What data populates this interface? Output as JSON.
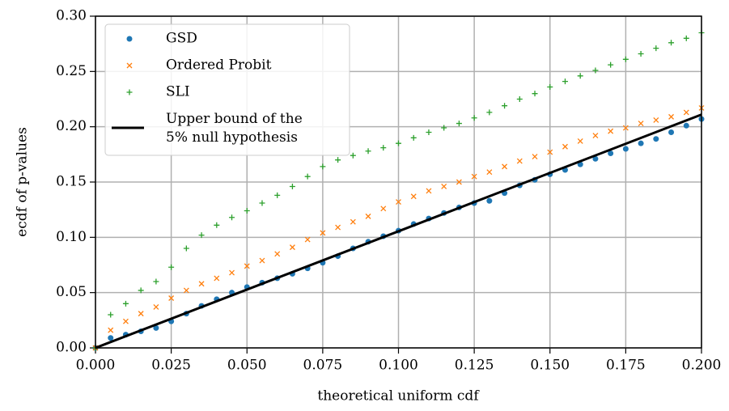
{
  "chart_data": {
    "type": "scatter",
    "xlabel": "theoretical uniform cdf",
    "ylabel": "ecdf of p-values",
    "xlim": [
      0,
      0.2
    ],
    "ylim": [
      0,
      0.3
    ],
    "xticks": [
      {
        "value": 0,
        "label": "0.000"
      },
      {
        "value": 0.025,
        "label": "0.025"
      },
      {
        "value": 0.05,
        "label": "0.050"
      },
      {
        "value": 0.075,
        "label": "0.075"
      },
      {
        "value": 0.1,
        "label": "0.100"
      },
      {
        "value": 0.125,
        "label": "0.125"
      },
      {
        "value": 0.15,
        "label": "0.150"
      },
      {
        "value": 0.175,
        "label": "0.175"
      },
      {
        "value": 0.2,
        "label": "0.200"
      }
    ],
    "yticks": [
      {
        "value": 0,
        "label": "0.00"
      },
      {
        "value": 0.05,
        "label": "0.05"
      },
      {
        "value": 0.1,
        "label": "0.10"
      },
      {
        "value": 0.15,
        "label": "0.15"
      },
      {
        "value": 0.2,
        "label": "0.20"
      },
      {
        "value": 0.25,
        "label": "0.25"
      },
      {
        "value": 0.3,
        "label": "0.30"
      }
    ],
    "grid": true,
    "legend": "upper left",
    "x": [
      0,
      0.005,
      0.01,
      0.015,
      0.02,
      0.025,
      0.03,
      0.035,
      0.04,
      0.045,
      0.05,
      0.055,
      0.06,
      0.065,
      0.07,
      0.075,
      0.08,
      0.085,
      0.09,
      0.095,
      0.1,
      0.105,
      0.11,
      0.115,
      0.12,
      0.125,
      0.13,
      0.135,
      0.14,
      0.145,
      0.15,
      0.155,
      0.16,
      0.165,
      0.17,
      0.175,
      0.18,
      0.185,
      0.19,
      0.195,
      0.2
    ],
    "series": [
      {
        "name": "GSD",
        "color": "#1f77b4",
        "marker": "o",
        "values": [
          0,
          0.009,
          0.012,
          0.015,
          0.018,
          0.024,
          0.031,
          0.038,
          0.044,
          0.05,
          0.055,
          0.059,
          0.063,
          0.067,
          0.072,
          0.077,
          0.083,
          0.09,
          0.096,
          0.101,
          0.106,
          0.112,
          0.117,
          0.122,
          0.127,
          0.131,
          0.133,
          0.14,
          0.147,
          0.152,
          0.157,
          0.161,
          0.166,
          0.171,
          0.176,
          0.18,
          0.185,
          0.189,
          0.195,
          0.201,
          0.207
        ]
      },
      {
        "name": "Ordered Probit",
        "color": "#ff7f0e",
        "marker": "x",
        "values": [
          0,
          0.016,
          0.024,
          0.031,
          0.037,
          0.045,
          0.052,
          0.058,
          0.063,
          0.068,
          0.074,
          0.079,
          0.085,
          0.091,
          0.098,
          0.104,
          0.109,
          0.114,
          0.119,
          0.126,
          0.132,
          0.137,
          0.142,
          0.146,
          0.15,
          0.155,
          0.159,
          0.164,
          0.169,
          0.173,
          0.177,
          0.182,
          0.187,
          0.192,
          0.196,
          0.199,
          0.203,
          0.206,
          0.209,
          0.213,
          0.217
        ]
      },
      {
        "name": "SLI",
        "color": "#2ca02c",
        "marker": "+",
        "values": [
          0,
          0.03,
          0.04,
          0.052,
          0.06,
          0.073,
          0.09,
          0.102,
          0.111,
          0.118,
          0.124,
          0.131,
          0.138,
          0.146,
          0.155,
          0.164,
          0.17,
          0.174,
          0.178,
          0.181,
          0.185,
          0.19,
          0.195,
          0.199,
          0.203,
          0.208,
          0.213,
          0.219,
          0.225,
          0.23,
          0.236,
          0.241,
          0.246,
          0.251,
          0.256,
          0.261,
          0.266,
          0.271,
          0.276,
          0.28,
          0.285
        ]
      },
      {
        "name": "Upper bound of the\n5% null hypothesis",
        "color": "#000000",
        "marker": "line",
        "x": [
          0,
          0.2
        ],
        "values": [
          0,
          0.211
        ]
      }
    ]
  }
}
